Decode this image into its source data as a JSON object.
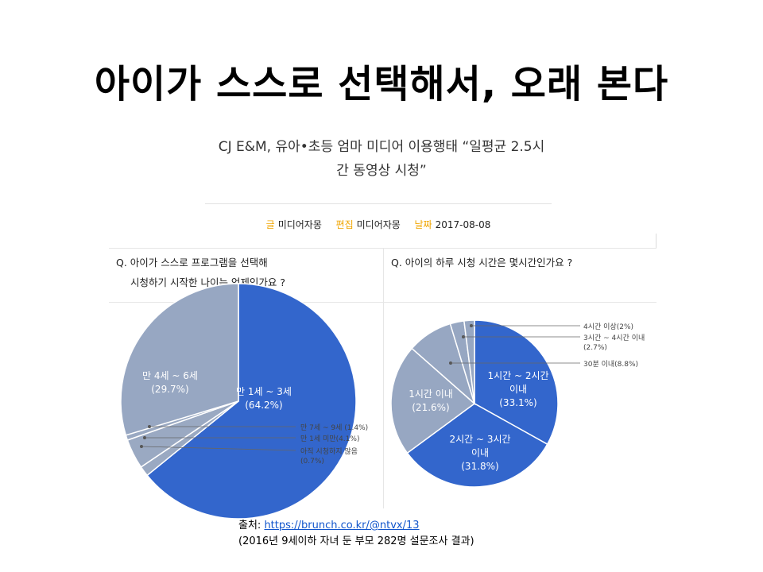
{
  "slide": {
    "title": "아이가 스스로 선택해서, 오래 본다"
  },
  "article": {
    "headline_line1": "CJ E&M, 유아•초등 엄마 미디어 이용행태 “일평균 2.5시",
    "headline_line2": "간 동영상 시청”",
    "writer_key": "글",
    "writer": "미디어자몽",
    "editor_key": "편집",
    "editor": "미디어자몽",
    "date_key": "날짜",
    "date": "2017-08-08"
  },
  "source": {
    "label": "출처: ",
    "url": "https://brunch.co.kr/@ntvx/13",
    "note": "(2016년 9세이하 자녀 둔 부모 282명 설문조사 결과)"
  },
  "colors": {
    "blue": "#3366cc",
    "gray": "#97a7c2",
    "dark_gray": "#8a97ad",
    "accent": "#f0a500"
  },
  "chart_data": [
    {
      "type": "pie",
      "title_line1": "Q. 아이가 스스로 프로그램을 선택해",
      "title_line2": "시청하기 시작한 나이는 언제인가요 ?",
      "slices": [
        {
          "label": "만 1세 ~ 3세",
          "pct_label": "(64.2%)",
          "value": 64.2,
          "color": "#3366cc",
          "label_mode": "inside"
        },
        {
          "label": "만 7세 ~ 9세 (1.4%)",
          "pct_label": "",
          "value": 1.4,
          "color": "#9aa9c2",
          "label_mode": "callout"
        },
        {
          "label": "만 1세 미만(4.1%)",
          "pct_label": "",
          "value": 4.1,
          "color": "#9aa9c2",
          "label_mode": "callout"
        },
        {
          "label": "아직 시청하지 않음",
          "pct_label": "(0.7%)",
          "value": 0.7,
          "color": "#9aa9c2",
          "label_mode": "callout"
        },
        {
          "label": "만 4세 ~ 6세",
          "pct_label": "(29.7%)",
          "value": 29.7,
          "color": "#97a7c2",
          "label_mode": "inside"
        }
      ]
    },
    {
      "type": "pie",
      "title_line1": "Q. 아이의 하루 시청 시간은 몇시간인가요 ?",
      "title_line2": "",
      "slices": [
        {
          "label": "1시간 ~ 2시간",
          "label2": "이내",
          "pct_label": "(33.1%)",
          "value": 33.1,
          "color": "#3366cc",
          "label_mode": "inside"
        },
        {
          "label": "2시간 ~ 3시간",
          "label2": "이내",
          "pct_label": "(31.8%)",
          "value": 31.8,
          "color": "#3366cc",
          "label_mode": "inside"
        },
        {
          "label": "1시간 이내",
          "label2": "",
          "pct_label": "(21.6%)",
          "value": 21.6,
          "color": "#97a7c2",
          "label_mode": "inside"
        },
        {
          "label": "30분 이내(8.8%)",
          "label2": "",
          "pct_label": "",
          "value": 8.8,
          "color": "#97a7c2",
          "label_mode": "callout"
        },
        {
          "label": "3시간 ~ 4시간 이내",
          "label2": "",
          "pct_label": "(2.7%)",
          "value": 2.7,
          "color": "#97a7c2",
          "label_mode": "callout"
        },
        {
          "label": "4시간 이상(2%)",
          "label2": "",
          "pct_label": "",
          "value": 2.0,
          "color": "#97a7c2",
          "label_mode": "callout"
        }
      ]
    }
  ]
}
